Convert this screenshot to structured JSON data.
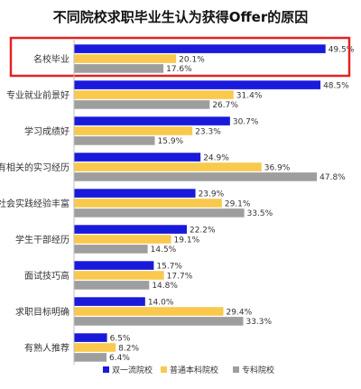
{
  "chart_data": {
    "type": "bar",
    "orientation": "horizontal",
    "title": "不同院校求职毕业生认为获得Offer的原因",
    "xlabel": "",
    "ylabel": "",
    "xlim": [
      0,
      50
    ],
    "grid": false,
    "legend_position": "bottom",
    "highlighted_category": "名校毕业",
    "value_suffix": "%",
    "categories": [
      "名校毕业",
      "专业就业前景好",
      "学习成绩好",
      "有相关的实习经历",
      "社会实践经验丰富",
      "学生干部经历",
      "面试技巧高",
      "求职目标明确",
      "有熟人推荐"
    ],
    "series": [
      {
        "name": "双一流院校",
        "color": "#1a1adb",
        "values": [
          49.5,
          48.5,
          30.7,
          24.9,
          23.9,
          22.2,
          15.7,
          14.0,
          6.5
        ]
      },
      {
        "name": "普通本科院校",
        "color": "#f9c94e",
        "values": [
          20.1,
          31.4,
          23.3,
          36.9,
          29.1,
          19.1,
          17.7,
          29.4,
          8.2
        ]
      },
      {
        "name": "专科院校",
        "color": "#9e9e9e",
        "values": [
          17.6,
          26.7,
          15.9,
          47.8,
          33.5,
          14.5,
          14.8,
          33.3,
          6.4
        ]
      }
    ],
    "highlight_color": "#e32222"
  }
}
